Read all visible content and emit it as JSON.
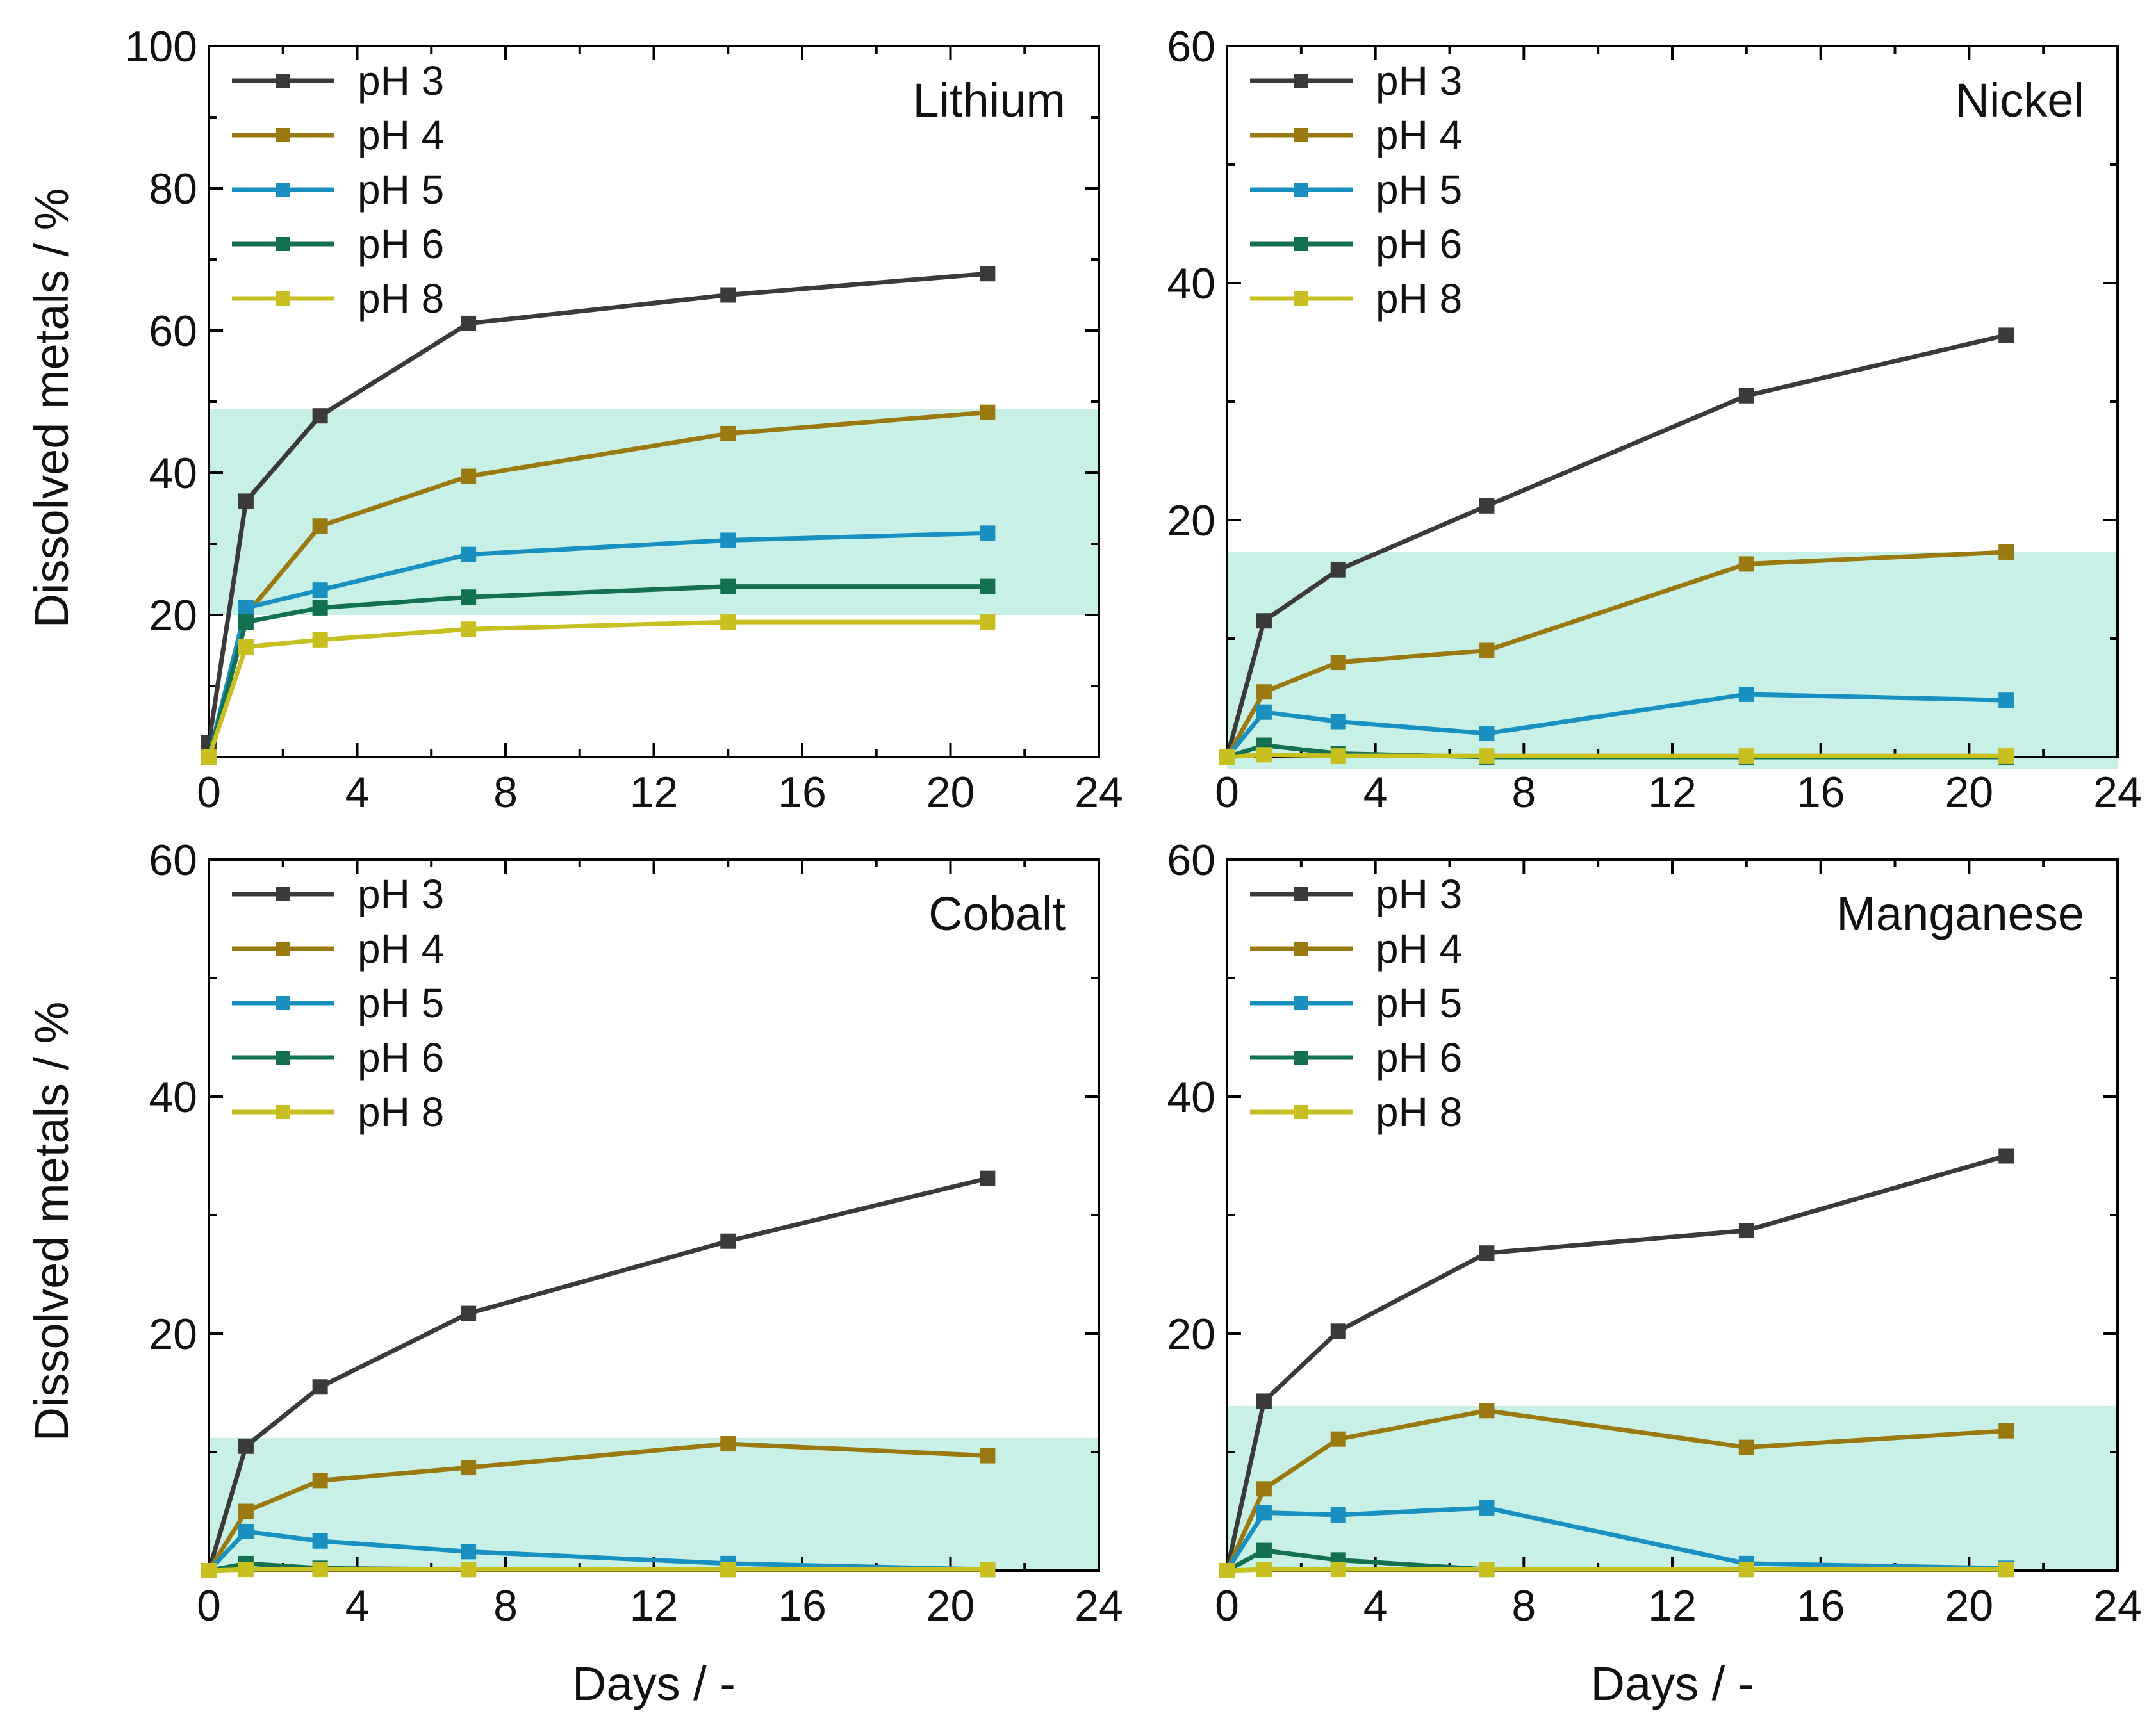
{
  "figure": {
    "series_colors": {
      "pH 3": "#3a3a3a",
      "pH 4": "#9a7a10",
      "pH 5": "#1a90c0",
      "pH 6": "#137050",
      "pH 8": "#c8c020"
    },
    "band_color": "#c8f0e6"
  },
  "chart_data": [
    {
      "type": "line",
      "title": "Lithium",
      "xlabel": "Days / -",
      "ylabel": "Dissolved metals / %",
      "xlim": [
        0,
        24
      ],
      "ylim": [
        0,
        100
      ],
      "xticks": [
        0,
        4,
        8,
        12,
        16,
        20,
        24
      ],
      "yticks": [
        20,
        40,
        60,
        80,
        100
      ],
      "x": [
        0,
        1,
        3,
        7,
        14,
        21
      ],
      "shaded_band": [
        20,
        49
      ],
      "series": [
        {
          "name": "pH 3",
          "values": [
            2,
            36,
            48,
            61,
            65,
            68
          ]
        },
        {
          "name": "pH 4",
          "values": [
            0,
            20,
            32.5,
            39.5,
            45.5,
            48.5
          ]
        },
        {
          "name": "pH 5",
          "values": [
            0,
            21,
            23.5,
            28.5,
            30.5,
            31.5
          ]
        },
        {
          "name": "pH 6",
          "values": [
            0,
            19,
            21,
            22.5,
            24,
            24
          ]
        },
        {
          "name": "pH 8",
          "values": [
            0,
            15.5,
            16.5,
            18,
            19,
            19
          ]
        }
      ]
    },
    {
      "type": "line",
      "title": "Nickel",
      "xlabel": "Days / -",
      "ylabel": "",
      "xlim": [
        0,
        24
      ],
      "ylim": [
        0,
        60
      ],
      "xticks": [
        0,
        4,
        8,
        12,
        16,
        20,
        24
      ],
      "yticks": [
        20,
        40,
        60
      ],
      "x": [
        0,
        1,
        3,
        7,
        14,
        21
      ],
      "shaded_band": [
        -1,
        17.3
      ],
      "series": [
        {
          "name": "pH 3",
          "values": [
            0,
            11.5,
            15.8,
            21.2,
            30.5,
            35.6
          ]
        },
        {
          "name": "pH 4",
          "values": [
            0,
            5.5,
            8,
            9,
            16.3,
            17.3
          ]
        },
        {
          "name": "pH 5",
          "values": [
            0,
            3.8,
            3,
            2,
            5.3,
            4.8
          ]
        },
        {
          "name": "pH 6",
          "values": [
            0,
            1,
            0.3,
            0,
            0,
            0
          ]
        },
        {
          "name": "pH 8",
          "values": [
            0,
            0.2,
            0.1,
            0.1,
            0.1,
            0.1
          ]
        }
      ]
    },
    {
      "type": "line",
      "title": "Cobalt",
      "xlabel": "Days / -",
      "ylabel": "Dissolved metals / %",
      "xlim": [
        0,
        24
      ],
      "ylim": [
        0,
        60
      ],
      "xticks": [
        0,
        4,
        8,
        12,
        16,
        20,
        24
      ],
      "yticks": [
        20,
        40,
        60
      ],
      "x": [
        0,
        1,
        3,
        7,
        14,
        21
      ],
      "shaded_band": [
        0,
        11.2
      ],
      "series": [
        {
          "name": "pH 3",
          "values": [
            0,
            10.5,
            15.5,
            21.7,
            27.8,
            33.1
          ]
        },
        {
          "name": "pH 4",
          "values": [
            0,
            5,
            7.6,
            8.7,
            10.7,
            9.7
          ]
        },
        {
          "name": "pH 5",
          "values": [
            0,
            3.3,
            2.5,
            1.6,
            0.6,
            0.1
          ]
        },
        {
          "name": "pH 6",
          "values": [
            0,
            0.6,
            0.2,
            0.1,
            0.1,
            0.1
          ]
        },
        {
          "name": "pH 8",
          "values": [
            0,
            0.1,
            0.1,
            0.1,
            0.1,
            0.1
          ]
        }
      ]
    },
    {
      "type": "line",
      "title": "Manganese",
      "xlabel": "Days / -",
      "ylabel": "",
      "xlim": [
        0,
        24
      ],
      "ylim": [
        0,
        60
      ],
      "xticks": [
        0,
        4,
        8,
        12,
        16,
        20,
        24
      ],
      "yticks": [
        20,
        40,
        60
      ],
      "x": [
        0,
        1,
        3,
        7,
        14,
        21
      ],
      "shaded_band": [
        0,
        13.9
      ],
      "series": [
        {
          "name": "pH 3",
          "values": [
            0,
            14.3,
            20.2,
            26.8,
            28.7,
            35
          ]
        },
        {
          "name": "pH 4",
          "values": [
            0,
            6.9,
            11.1,
            13.5,
            10.4,
            11.8
          ]
        },
        {
          "name": "pH 5",
          "values": [
            0,
            4.9,
            4.7,
            5.3,
            0.6,
            0.2
          ]
        },
        {
          "name": "pH 6",
          "values": [
            0,
            1.7,
            0.9,
            0.1,
            0.1,
            0.1
          ]
        },
        {
          "name": "pH 8",
          "values": [
            0,
            0.1,
            0.1,
            0.1,
            0.1,
            0.1
          ]
        }
      ]
    }
  ]
}
